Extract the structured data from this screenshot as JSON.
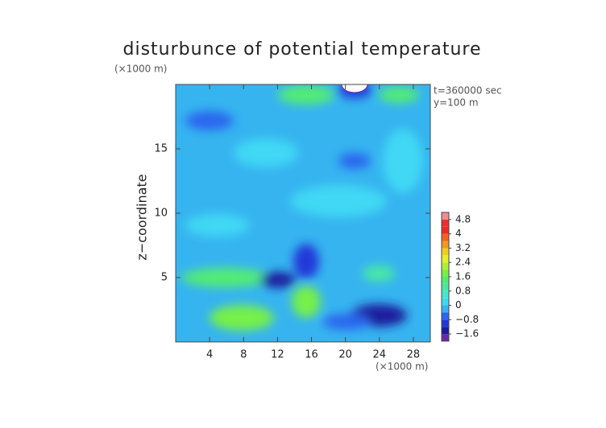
{
  "chart_data": {
    "type": "contour",
    "title": "disturbunce of potential temperature",
    "y_unit": "(×1000 m)",
    "x_unit": "(×1000 m)",
    "ylabel": "z−coordinate",
    "annotations": [
      "t=360000 sec",
      "y=100 m"
    ],
    "xlim": [
      0,
      30
    ],
    "xticks": [
      4,
      8,
      12,
      16,
      20,
      24,
      28
    ],
    "ylim": [
      0,
      20
    ],
    "yticks": [
      5,
      10,
      15
    ],
    "colorbar": {
      "lim": [
        -2.0,
        5.2
      ],
      "colors": [
        "#6a28a8",
        "#1c1c9c",
        "#2038d8",
        "#2a66ee",
        "#36b4f0",
        "#40d8f4",
        "#44e6d4",
        "#4ae8a4",
        "#52ec74",
        "#76f048",
        "#b0f034",
        "#e4f028",
        "#f0cc20",
        "#f09a1e",
        "#f0641e",
        "#f02a1e",
        "#e83030",
        "#f08c8c"
      ],
      "ticks": [
        {
          "value": -1.6,
          "label": "−1.6"
        },
        {
          "value": -0.8,
          "label": "−0.8"
        },
        0,
        0.8,
        1.6,
        2.4,
        3.2,
        4,
        4.8
      ]
    }
  }
}
